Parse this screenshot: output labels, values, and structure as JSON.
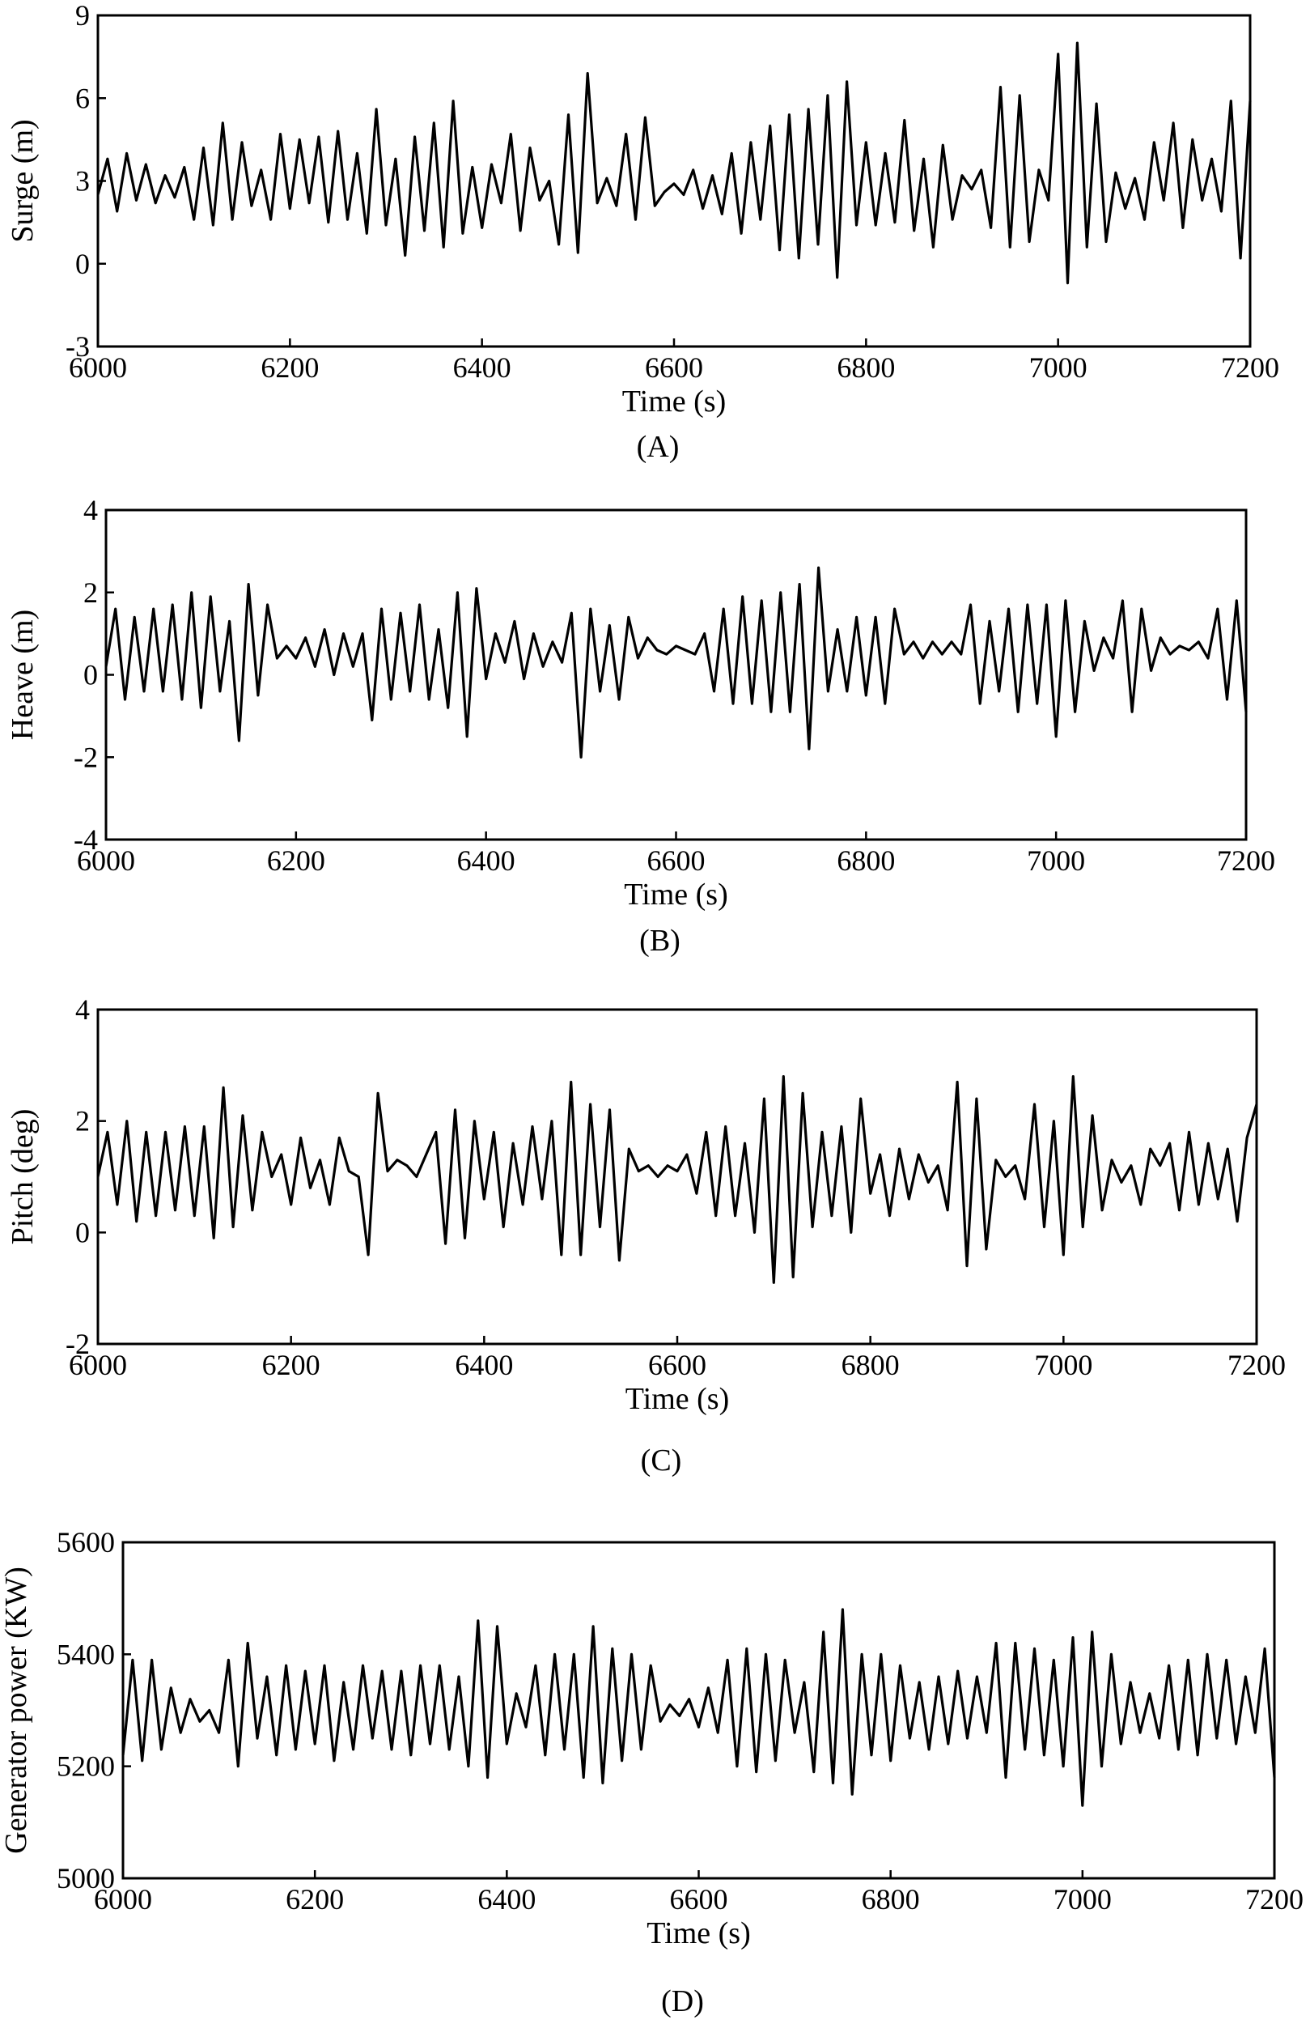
{
  "chart_data": [
    {
      "type": "line",
      "panel_label": "(A)",
      "xlabel": "Time (s)",
      "ylabel": "Surge (m)",
      "xlim": [
        6000,
        7200
      ],
      "ylim": [
        -3,
        9
      ],
      "xticks": [
        6000,
        6200,
        6400,
        6600,
        6800,
        7000,
        7200
      ],
      "yticks": [
        -3,
        0,
        3,
        6,
        9
      ],
      "grid": false,
      "series": [
        {
          "x": [
            6000,
            6010,
            6020,
            6030,
            6040,
            6050,
            6060,
            6070,
            6080,
            6090,
            6100,
            6110,
            6120,
            6130,
            6140,
            6150,
            6160,
            6170,
            6180,
            6190,
            6200,
            6210,
            6220,
            6230,
            6240,
            6250,
            6260,
            6270,
            6280,
            6290,
            6300,
            6310,
            6320,
            6330,
            6340,
            6350,
            6360,
            6370,
            6380,
            6390,
            6400,
            6410,
            6420,
            6430,
            6440,
            6450,
            6460,
            6470,
            6480,
            6490,
            6500,
            6510,
            6520,
            6530,
            6540,
            6550,
            6560,
            6570,
            6580,
            6590,
            6600,
            6610,
            6620,
            6630,
            6640,
            6650,
            6660,
            6670,
            6680,
            6690,
            6700,
            6710,
            6720,
            6730,
            6740,
            6750,
            6760,
            6770,
            6780,
            6790,
            6800,
            6810,
            6820,
            6830,
            6840,
            6850,
            6860,
            6870,
            6880,
            6890,
            6900,
            6910,
            6920,
            6930,
            6940,
            6950,
            6960,
            6970,
            6980,
            6990,
            7000,
            7010,
            7020,
            7030,
            7040,
            7050,
            7060,
            7070,
            7080,
            7090,
            7100,
            7110,
            7120,
            7130,
            7140,
            7150,
            7160,
            7170,
            7180,
            7190,
            7200
          ],
          "y": [
            2.5,
            3.8,
            1.9,
            4.0,
            2.3,
            3.6,
            2.2,
            3.2,
            2.4,
            3.5,
            1.6,
            4.2,
            1.4,
            5.1,
            1.6,
            4.4,
            2.1,
            3.4,
            1.6,
            4.7,
            2.0,
            4.5,
            2.2,
            4.6,
            1.5,
            4.8,
            1.6,
            4.0,
            1.1,
            5.6,
            1.4,
            3.8,
            0.3,
            4.6,
            1.2,
            5.1,
            0.6,
            5.9,
            1.1,
            3.5,
            1.3,
            3.6,
            2.2,
            4.7,
            1.2,
            4.2,
            2.3,
            3.0,
            0.7,
            5.4,
            0.4,
            6.9,
            2.2,
            3.1,
            2.1,
            4.7,
            1.6,
            5.3,
            2.1,
            2.6,
            2.9,
            2.5,
            3.4,
            2.0,
            3.2,
            1.8,
            4.0,
            1.1,
            4.4,
            1.6,
            5.0,
            0.5,
            5.4,
            0.2,
            5.6,
            0.7,
            6.1,
            -0.5,
            6.6,
            1.4,
            4.4,
            1.4,
            4.0,
            1.5,
            5.2,
            1.2,
            3.8,
            0.6,
            4.3,
            1.6,
            3.2,
            2.7,
            3.4,
            1.3,
            6.4,
            0.6,
            6.1,
            0.8,
            3.4,
            2.3,
            7.6,
            -0.7,
            8.0,
            0.6,
            5.8,
            0.8,
            3.3,
            2.0,
            3.1,
            1.6,
            4.4,
            2.3,
            5.1,
            1.3,
            4.5,
            2.3,
            3.8,
            1.9,
            5.9,
            0.2,
            5.9
          ]
        }
      ]
    },
    {
      "type": "line",
      "panel_label": "(B)",
      "xlabel": "Time (s)",
      "ylabel": "Heave (m)",
      "xlim": [
        6000,
        7200
      ],
      "ylim": [
        -4,
        4
      ],
      "xticks": [
        6000,
        6200,
        6400,
        6600,
        6800,
        7000,
        7200
      ],
      "yticks": [
        -4,
        -2,
        0,
        2,
        4
      ],
      "grid": false,
      "series": [
        {
          "x": [
            6000,
            6010,
            6020,
            6030,
            6040,
            6050,
            6060,
            6070,
            6080,
            6090,
            6100,
            6110,
            6120,
            6130,
            6140,
            6150,
            6160,
            6170,
            6180,
            6190,
            6200,
            6210,
            6220,
            6230,
            6240,
            6250,
            6260,
            6270,
            6280,
            6290,
            6300,
            6310,
            6320,
            6330,
            6340,
            6350,
            6360,
            6370,
            6380,
            6390,
            6400,
            6410,
            6420,
            6430,
            6440,
            6450,
            6460,
            6470,
            6480,
            6490,
            6500,
            6510,
            6520,
            6530,
            6540,
            6550,
            6560,
            6570,
            6580,
            6590,
            6600,
            6610,
            6620,
            6630,
            6640,
            6650,
            6660,
            6670,
            6680,
            6690,
            6700,
            6710,
            6720,
            6730,
            6740,
            6750,
            6760,
            6770,
            6780,
            6790,
            6800,
            6810,
            6820,
            6830,
            6840,
            6850,
            6860,
            6870,
            6880,
            6890,
            6900,
            6910,
            6920,
            6930,
            6940,
            6950,
            6960,
            6970,
            6980,
            6990,
            7000,
            7010,
            7020,
            7030,
            7040,
            7050,
            7060,
            7070,
            7080,
            7090,
            7100,
            7110,
            7120,
            7130,
            7140,
            7150,
            7160,
            7170,
            7180,
            7190,
            7200
          ],
          "y": [
            0.2,
            1.6,
            -0.6,
            1.4,
            -0.4,
            1.6,
            -0.4,
            1.7,
            -0.6,
            2.0,
            -0.8,
            1.9,
            -0.4,
            1.3,
            -1.6,
            2.2,
            -0.5,
            1.7,
            0.4,
            0.7,
            0.4,
            0.9,
            0.2,
            1.1,
            0.0,
            1.0,
            0.2,
            1.0,
            -1.1,
            1.6,
            -0.6,
            1.5,
            -0.4,
            1.7,
            -0.6,
            1.1,
            -0.8,
            2.0,
            -1.5,
            2.1,
            -0.1,
            1.0,
            0.3,
            1.3,
            -0.1,
            1.0,
            0.2,
            0.8,
            0.3,
            1.5,
            -2.0,
            1.6,
            -0.4,
            1.2,
            -0.6,
            1.4,
            0.4,
            0.9,
            0.6,
            0.5,
            0.7,
            0.6,
            0.5,
            1.0,
            -0.4,
            1.6,
            -0.7,
            1.9,
            -0.7,
            1.8,
            -0.9,
            2.0,
            -0.9,
            2.2,
            -1.8,
            2.6,
            -0.4,
            1.1,
            -0.4,
            1.4,
            -0.5,
            1.4,
            -0.7,
            1.6,
            0.5,
            0.8,
            0.4,
            0.8,
            0.5,
            0.8,
            0.5,
            1.7,
            -0.7,
            1.3,
            -0.4,
            1.6,
            -0.9,
            1.7,
            -0.7,
            1.7,
            -1.5,
            1.8,
            -0.9,
            1.3,
            0.1,
            0.9,
            0.4,
            1.8,
            -0.9,
            1.6,
            0.1,
            0.9,
            0.5,
            0.7,
            0.6,
            0.8,
            0.4,
            1.6,
            -0.6,
            1.8,
            -0.9
          ]
        }
      ]
    },
    {
      "type": "line",
      "panel_label": "(C)",
      "xlabel": "Time (s)",
      "ylabel": "Pitch (deg)",
      "xlim": [
        6000,
        7200
      ],
      "ylim": [
        -2,
        4
      ],
      "xticks": [
        6000,
        6200,
        6400,
        6600,
        6800,
        7000,
        7200
      ],
      "yticks": [
        -2,
        0,
        2,
        4
      ],
      "grid": false,
      "series": [
        {
          "x": [
            6000,
            6010,
            6020,
            6030,
            6040,
            6050,
            6060,
            6070,
            6080,
            6090,
            6100,
            6110,
            6120,
            6130,
            6140,
            6150,
            6160,
            6170,
            6180,
            6190,
            6200,
            6210,
            6220,
            6230,
            6240,
            6250,
            6260,
            6270,
            6280,
            6290,
            6300,
            6310,
            6320,
            6330,
            6340,
            6350,
            6360,
            6370,
            6380,
            6390,
            6400,
            6410,
            6420,
            6430,
            6440,
            6450,
            6460,
            6470,
            6480,
            6490,
            6500,
            6510,
            6520,
            6530,
            6540,
            6550,
            6560,
            6570,
            6580,
            6590,
            6600,
            6610,
            6620,
            6630,
            6640,
            6650,
            6660,
            6670,
            6680,
            6690,
            6700,
            6710,
            6720,
            6730,
            6740,
            6750,
            6760,
            6770,
            6780,
            6790,
            6800,
            6810,
            6820,
            6830,
            6840,
            6850,
            6860,
            6870,
            6880,
            6890,
            6900,
            6910,
            6920,
            6930,
            6940,
            6950,
            6960,
            6970,
            6980,
            6990,
            7000,
            7010,
            7020,
            7030,
            7040,
            7050,
            7060,
            7070,
            7080,
            7090,
            7100,
            7110,
            7120,
            7130,
            7140,
            7150,
            7160,
            7170,
            7180,
            7190,
            7200
          ],
          "y": [
            1.0,
            1.8,
            0.5,
            2.0,
            0.2,
            1.8,
            0.3,
            1.8,
            0.4,
            1.9,
            0.3,
            1.9,
            -0.1,
            2.6,
            0.1,
            2.1,
            0.4,
            1.8,
            1.0,
            1.4,
            0.5,
            1.7,
            0.8,
            1.3,
            0.5,
            1.7,
            1.1,
            1.0,
            -0.4,
            2.5,
            1.1,
            1.3,
            1.2,
            1.0,
            1.4,
            1.8,
            -0.2,
            2.2,
            -0.1,
            2.0,
            0.6,
            1.8,
            0.1,
            1.6,
            0.5,
            1.9,
            0.6,
            2.0,
            -0.4,
            2.7,
            -0.4,
            2.3,
            0.1,
            2.2,
            -0.5,
            1.5,
            1.1,
            1.2,
            1.0,
            1.2,
            1.1,
            1.4,
            0.7,
            1.8,
            0.3,
            1.9,
            0.3,
            1.6,
            0.0,
            2.4,
            -0.9,
            2.8,
            -0.8,
            2.5,
            0.1,
            1.8,
            0.3,
            1.9,
            0.0,
            2.4,
            0.7,
            1.4,
            0.3,
            1.5,
            0.6,
            1.4,
            0.9,
            1.2,
            0.4,
            2.7,
            -0.6,
            2.4,
            -0.3,
            1.3,
            1.0,
            1.2,
            0.6,
            2.3,
            0.1,
            2.0,
            -0.4,
            2.8,
            0.1,
            2.1,
            0.4,
            1.3,
            0.9,
            1.2,
            0.5,
            1.5,
            1.2,
            1.6,
            0.4,
            1.8,
            0.5,
            1.6,
            0.6,
            1.5,
            0.2,
            1.7,
            2.3
          ]
        }
      ]
    },
    {
      "type": "line",
      "panel_label": "(D)",
      "xlabel": "Time (s)",
      "ylabel": "Generator power (KW)",
      "xlim": [
        6000,
        7200
      ],
      "ylim": [
        5000,
        5600
      ],
      "xticks": [
        6000,
        6200,
        6400,
        6600,
        6800,
        7000,
        7200
      ],
      "yticks": [
        5000,
        5200,
        5400,
        5600
      ],
      "grid": false,
      "series": [
        {
          "x": [
            6000,
            6010,
            6020,
            6030,
            6040,
            6050,
            6060,
            6070,
            6080,
            6090,
            6100,
            6110,
            6120,
            6130,
            6140,
            6150,
            6160,
            6170,
            6180,
            6190,
            6200,
            6210,
            6220,
            6230,
            6240,
            6250,
            6260,
            6270,
            6280,
            6290,
            6300,
            6310,
            6320,
            6330,
            6340,
            6350,
            6360,
            6370,
            6380,
            6390,
            6400,
            6410,
            6420,
            6430,
            6440,
            6450,
            6460,
            6470,
            6480,
            6490,
            6500,
            6510,
            6520,
            6530,
            6540,
            6550,
            6560,
            6570,
            6580,
            6590,
            6600,
            6610,
            6620,
            6630,
            6640,
            6650,
            6660,
            6670,
            6680,
            6690,
            6700,
            6710,
            6720,
            6730,
            6740,
            6750,
            6760,
            6770,
            6780,
            6790,
            6800,
            6810,
            6820,
            6830,
            6840,
            6850,
            6860,
            6870,
            6880,
            6890,
            6900,
            6910,
            6920,
            6930,
            6940,
            6950,
            6960,
            6970,
            6980,
            6990,
            7000,
            7010,
            7020,
            7030,
            7040,
            7050,
            7060,
            7070,
            7080,
            7090,
            7100,
            7110,
            7120,
            7130,
            7140,
            7150,
            7160,
            7170,
            7180,
            7190,
            7200
          ],
          "y": [
            5220,
            5390,
            5210,
            5390,
            5230,
            5340,
            5260,
            5320,
            5280,
            5300,
            5260,
            5390,
            5200,
            5420,
            5250,
            5360,
            5220,
            5380,
            5230,
            5370,
            5240,
            5380,
            5210,
            5350,
            5230,
            5380,
            5250,
            5370,
            5230,
            5370,
            5220,
            5380,
            5240,
            5380,
            5230,
            5360,
            5200,
            5460,
            5180,
            5450,
            5240,
            5330,
            5270,
            5380,
            5220,
            5400,
            5230,
            5400,
            5180,
            5450,
            5170,
            5410,
            5210,
            5400,
            5230,
            5380,
            5280,
            5310,
            5290,
            5320,
            5270,
            5340,
            5260,
            5390,
            5200,
            5410,
            5190,
            5400,
            5210,
            5390,
            5260,
            5350,
            5190,
            5440,
            5170,
            5480,
            5150,
            5400,
            5220,
            5400,
            5210,
            5380,
            5250,
            5350,
            5230,
            5360,
            5240,
            5370,
            5250,
            5360,
            5260,
            5420,
            5180,
            5420,
            5230,
            5410,
            5220,
            5390,
            5200,
            5430,
            5130,
            5440,
            5200,
            5400,
            5240,
            5350,
            5260,
            5330,
            5250,
            5380,
            5230,
            5390,
            5220,
            5400,
            5250,
            5390,
            5240,
            5360,
            5260,
            5410,
            5180
          ]
        }
      ]
    }
  ]
}
